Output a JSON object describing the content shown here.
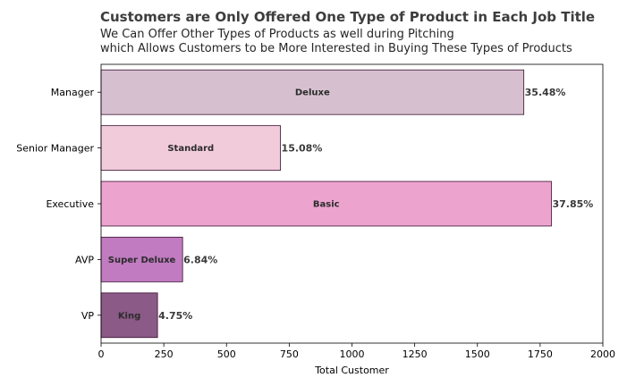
{
  "chart_data": {
    "type": "bar",
    "orientation": "horizontal",
    "title": "Customers are Only Offered One Type of Product in Each Job Title",
    "subtitle_lines": [
      "We Can Offer Other Types of Products as well during Pitching",
      "which Allows Customers to be More Interested in Buying These Types of Products"
    ],
    "xlabel": "Total Customer",
    "ylabel": "",
    "xlim": [
      0,
      2000
    ],
    "xticks": [
      "0",
      "250",
      "500",
      "750",
      "1000",
      "1250",
      "1500",
      "1750",
      "2000"
    ],
    "categories": [
      "Manager",
      "Senior Manager",
      "Executive",
      "AVP",
      "VP"
    ],
    "values": [
      1685,
      715,
      1795,
      325,
      225
    ],
    "products": [
      "Deluxe",
      "Standard",
      "Basic",
      "Super Deluxe",
      "King"
    ],
    "percent_labels": [
      "35.48%",
      "15.08%",
      "37.85%",
      "6.84%",
      "4.75%"
    ],
    "colors": [
      "#d6c0cf",
      "#f2cbdb",
      "#eca4cf",
      "#c07bc1",
      "#8b5a86"
    ],
    "edge_color": "#3a1030",
    "grid": false,
    "legend": "none"
  }
}
